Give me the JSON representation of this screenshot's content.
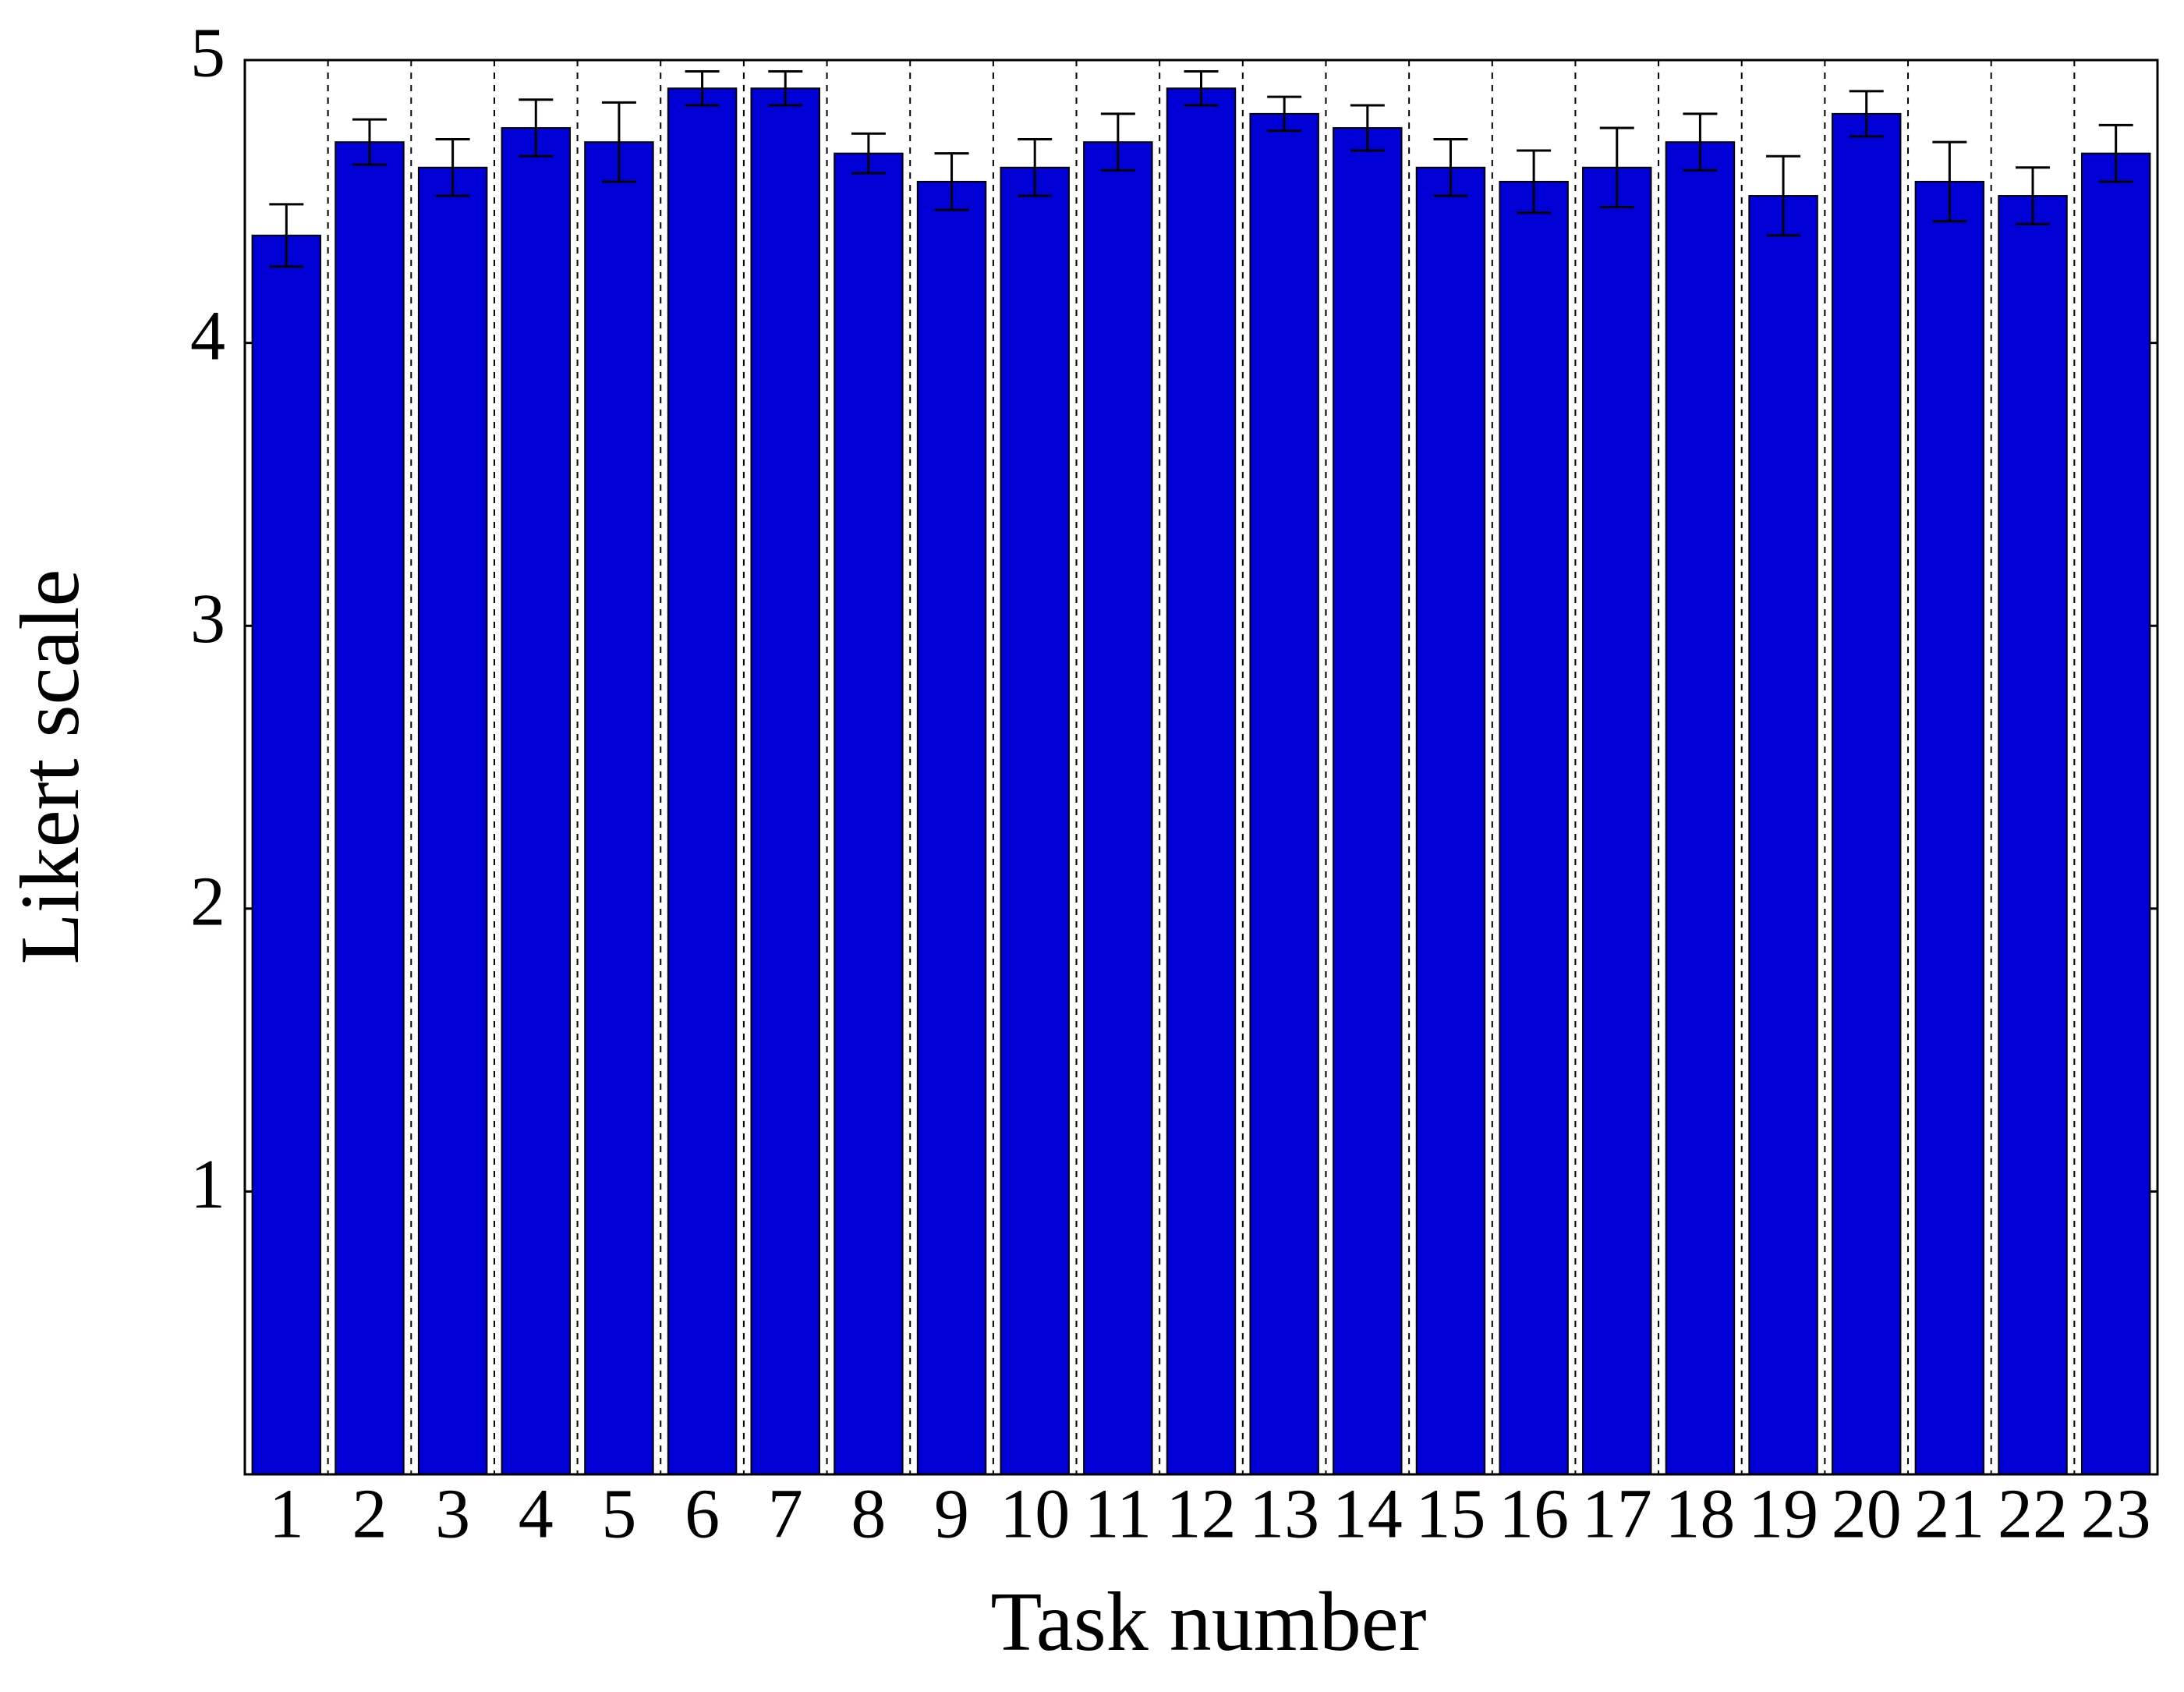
{
  "chart_data": {
    "type": "bar",
    "xlabel": "Task number",
    "ylabel": "Likert scale",
    "categories": [
      "1",
      "2",
      "3",
      "4",
      "5",
      "6",
      "7",
      "8",
      "9",
      "10",
      "11",
      "12",
      "13",
      "14",
      "15",
      "16",
      "17",
      "18",
      "19",
      "20",
      "21",
      "22",
      "23"
    ],
    "values": [
      4.38,
      4.71,
      4.62,
      4.76,
      4.71,
      4.9,
      4.9,
      4.67,
      4.57,
      4.62,
      4.71,
      4.9,
      4.81,
      4.76,
      4.62,
      4.57,
      4.62,
      4.71,
      4.52,
      4.81,
      4.57,
      4.52,
      4.67
    ],
    "errors": [
      0.11,
      0.08,
      0.1,
      0.1,
      0.14,
      0.06,
      0.06,
      0.07,
      0.1,
      0.1,
      0.1,
      0.06,
      0.06,
      0.08,
      0.1,
      0.11,
      0.14,
      0.1,
      0.14,
      0.08,
      0.14,
      0.1,
      0.1
    ],
    "color": "#0000d6",
    "ylim": [
      0,
      5
    ],
    "yticks": [
      1,
      2,
      3,
      4,
      5
    ],
    "grid": true
  }
}
